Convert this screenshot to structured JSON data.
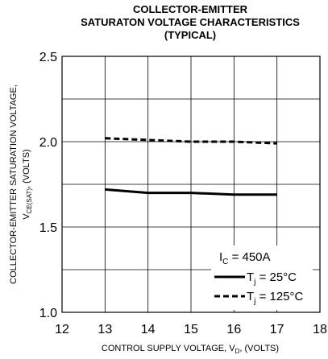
{
  "chart_data": {
    "type": "line",
    "title_lines": [
      "COLLECTOR-EMITTER",
      "SATURATON VOLTAGE CHARACTERISTICS",
      "(TYPICAL)"
    ],
    "xlabel": {
      "main": "CONTROL SUPPLY VOLTAGE, V",
      "sub": "D",
      "tail": ", (VOLTS)"
    },
    "ylabel": {
      "line1": "COLLECTOR-EMITTER SATURATION VOLTAGE,",
      "main": "V",
      "sub": "CE(SAT)",
      "tail": ", (VOLTS)"
    },
    "xlim": [
      12,
      18
    ],
    "ylim": [
      1.0,
      2.5
    ],
    "x_ticks": [
      "12",
      "13",
      "14",
      "15",
      "16",
      "17",
      "18"
    ],
    "y_ticks": [
      "1.0",
      "1.5",
      "2.0",
      "2.5"
    ],
    "x_tick_values": [
      12,
      13,
      14,
      15,
      16,
      17,
      18
    ],
    "y_tick_values": [
      1.0,
      1.5,
      2.0,
      2.5
    ],
    "grid": true,
    "legend_position": "bottom-right",
    "condition": {
      "main": "I",
      "sub": "C",
      "tail": " = 450A"
    },
    "series": [
      {
        "name": {
          "main": "T",
          "sub": "j",
          "tail": " = 25°C"
        },
        "line_style": "solid",
        "x": [
          13,
          14,
          15,
          16,
          17
        ],
        "y": [
          1.72,
          1.7,
          1.7,
          1.69,
          1.69
        ]
      },
      {
        "name": {
          "main": "T",
          "sub": "j",
          "tail": " = 125°C"
        },
        "line_style": "dashed",
        "x": [
          13,
          14,
          15,
          16,
          17
        ],
        "y": [
          2.02,
          2.01,
          2.0,
          2.0,
          1.99
        ]
      }
    ]
  }
}
